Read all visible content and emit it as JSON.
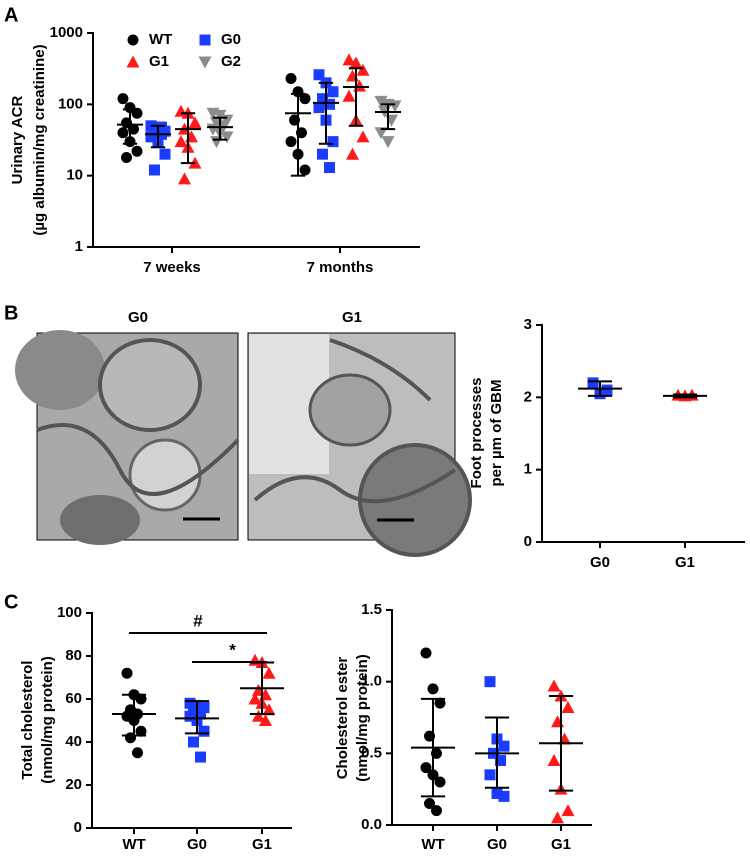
{
  "panel_labels": [
    "A",
    "B",
    "C"
  ],
  "micrographs": [
    {
      "title": "G0"
    },
    {
      "title": "G1"
    }
  ],
  "chart_data": [
    {
      "type": "dot",
      "log": true,
      "ylabel": [
        "Urinary ACR",
        "(µg albumin/mg creatinine)"
      ],
      "categories": [
        "7 weeks",
        "7 months"
      ],
      "ylim": [
        1,
        1000
      ],
      "yticks": [
        1,
        10,
        100,
        1000
      ],
      "legend": "top-left",
      "series": [
        {
          "name": "WT",
          "color": "#000000",
          "marker": "circle",
          "points": [
            [
              120,
              90,
              75,
              55,
              45,
              40,
              30,
              22,
              18
            ],
            [
              230,
              150,
              120,
              60,
              40,
              30,
              20,
              12
            ]
          ],
          "mean": [
            52,
            75
          ],
          "lower": [
            28,
            10
          ],
          "upper": [
            85,
            140
          ]
        },
        {
          "name": "G0",
          "color": "#1a3cff",
          "marker": "square",
          "points": [
            [
              50,
              45,
              42,
              40,
              38,
              35,
              30,
              20,
              12,
              48
            ],
            [
              260,
              200,
              150,
              120,
              100,
              90,
              60,
              30,
              20,
              13
            ]
          ],
          "mean": [
            38,
            105
          ],
          "lower": [
            25,
            28
          ],
          "upper": [
            50,
            200
          ]
        },
        {
          "name": "G1",
          "color": "#ff1a1a",
          "marker": "triangle",
          "points": [
            [
              80,
              75,
              55,
              45,
              35,
              30,
              25,
              15,
              9
            ],
            [
              420,
              380,
              300,
              250,
              180,
              130,
              60,
              35,
              20
            ]
          ],
          "mean": [
            45,
            175
          ],
          "lower": [
            15,
            50
          ],
          "upper": [
            75,
            320
          ]
        },
        {
          "name": "G2",
          "color": "#8c8c8c",
          "marker": "triangle-down",
          "points": [
            [
              75,
              70,
              60,
              55,
              50,
              45,
              40,
              35,
              30
            ],
            [
              110,
              100,
              95,
              80,
              60,
              40,
              30
            ]
          ],
          "mean": [
            48,
            78
          ],
          "lower": [
            32,
            45
          ],
          "upper": [
            65,
            100
          ]
        }
      ]
    },
    {
      "type": "dot",
      "ylabel": [
        "Foot processes",
        "per µm of GBM"
      ],
      "categories": [
        "G0",
        "G1"
      ],
      "colors": [
        "#1a3cff",
        "#ff1a1a"
      ],
      "markers": [
        "square",
        "triangle"
      ],
      "points": [
        [
          2.2,
          2.05,
          2.1
        ],
        [
          2.03,
          2.02,
          2.03
        ]
      ],
      "mean": [
        2.12,
        2.02
      ],
      "lower": [
        2.02,
        2.0
      ],
      "upper": [
        2.22,
        2.04
      ],
      "ylim": [
        0,
        3
      ],
      "yticks": [
        0,
        1,
        2,
        3
      ]
    },
    {
      "type": "dot",
      "ylabel": [
        "Total cholesterol",
        "(nmol/mg protein)"
      ],
      "categories": [
        "WT",
        "G0",
        "G1"
      ],
      "colors": [
        "#000000",
        "#1a3cff",
        "#ff1a1a"
      ],
      "markers": [
        "circle",
        "square",
        "triangle"
      ],
      "points": [
        [
          72,
          62,
          60,
          55,
          53,
          52,
          50,
          45,
          42,
          35
        ],
        [
          58,
          57,
          56,
          54,
          53,
          52,
          50,
          45,
          40,
          33
        ],
        [
          78,
          77,
          72,
          64,
          62,
          60,
          58,
          55,
          52,
          50
        ]
      ],
      "mean": [
        53,
        51,
        65
      ],
      "lower": [
        43,
        44,
        53
      ],
      "upper": [
        62,
        59,
        77
      ],
      "ylim": [
        0,
        100
      ],
      "yticks": [
        0,
        20,
        40,
        60,
        80,
        100
      ],
      "annotations": [
        {
          "text": "#"
        },
        {
          "text": "*"
        }
      ]
    },
    {
      "type": "dot",
      "ylabel": [
        "Cholesterol ester",
        "(nmol/mg protein)"
      ],
      "categories": [
        "WT",
        "G0",
        "G1"
      ],
      "colors": [
        "#000000",
        "#1a3cff",
        "#ff1a1a"
      ],
      "markers": [
        "circle",
        "square",
        "triangle"
      ],
      "points": [
        [
          1.2,
          0.95,
          0.85,
          0.62,
          0.5,
          0.4,
          0.35,
          0.3,
          0.15,
          0.1
        ],
        [
          1.0,
          0.6,
          0.55,
          0.5,
          0.45,
          0.35,
          0.22,
          0.2
        ],
        [
          0.97,
          0.9,
          0.82,
          0.72,
          0.6,
          0.45,
          0.25,
          0.1,
          0.05
        ]
      ],
      "mean": [
        0.54,
        0.5,
        0.57
      ],
      "lower": [
        0.2,
        0.26,
        0.24
      ],
      "upper": [
        0.88,
        0.75,
        0.9
      ],
      "ylim": [
        0,
        1.5
      ],
      "yticks": [
        {
          "value": 0,
          "label": "0.0"
        },
        0.5,
        {
          "value": 1,
          "label": "1.0"
        },
        1.5
      ]
    }
  ]
}
